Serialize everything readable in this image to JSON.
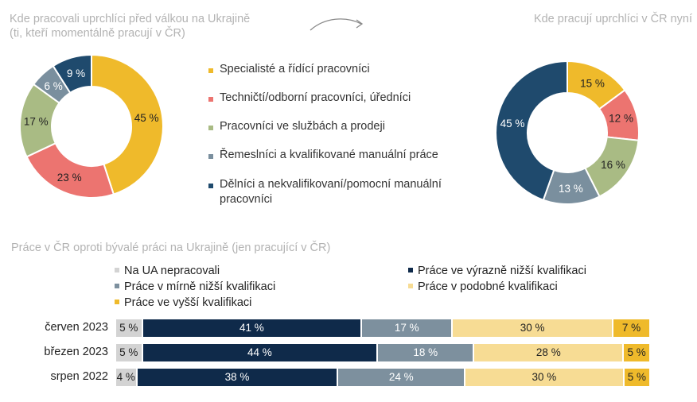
{
  "titles": {
    "left": "Kde pracovali uprchlíci před válkou na Ukrajině (ti, kteří momentálně pracují v ČR)",
    "right": "Kde pracují uprchlíci v ČR nyní",
    "bars": "Práce v ČR oproti bývalé práci na Ukrajině (jen pracující v ČR)"
  },
  "colors": {
    "specialists": "#efba2b",
    "technicians": "#ec7470",
    "services": "#a9bb84",
    "crafts": "#7a8f9e",
    "laborers": "#1f4a6d",
    "na_ua": "#d3d3d3",
    "much_lower": "#0f2a4a",
    "slightly_lower": "#7d909e",
    "similar": "#f7dc94",
    "higher": "#efba2b"
  },
  "icons": {
    "arrow": "curved-arrow-icon"
  },
  "chart_data": [
    {
      "type": "pie",
      "title": "Kde pracovali uprchlíci před válkou na Ukrajině (ti, kteří momentálně pracují v ČR)",
      "slices": [
        {
          "label": "Specialisté a řídící pracovníci",
          "value": 45,
          "display": "45 %",
          "color": "#efba2b"
        },
        {
          "label": "Techničtí/odborní pracovníci, úředníci",
          "value": 23,
          "display": "23 %",
          "color": "#ec7470"
        },
        {
          "label": "Pracovníci ve službách a prodeji",
          "value": 17,
          "display": "17 %",
          "color": "#a9bb84"
        },
        {
          "label": "Řemeslníci a kvalifikované manuální práce",
          "value": 6,
          "display": "6 %",
          "color": "#7a8f9e"
        },
        {
          "label": "Dělníci a nekvalifikovaní/pomocní manuální pracovníci",
          "value": 9,
          "display": "9 %",
          "color": "#1f4a6d"
        }
      ]
    },
    {
      "type": "pie",
      "title": "Kde pracují uprchlíci v ČR nyní",
      "slices": [
        {
          "label": "Specialisté a řídící pracovníci",
          "value": 15,
          "display": "15 %",
          "color": "#efba2b"
        },
        {
          "label": "Techničtí/odborní pracovníci, úředníci",
          "value": 12,
          "display": "12 %",
          "color": "#ec7470"
        },
        {
          "label": "Pracovníci ve službách a prodeji",
          "value": 16,
          "display": "16 %",
          "color": "#a9bb84"
        },
        {
          "label": "Řemeslníci a kvalifikované manuální práce",
          "value": 13,
          "display": "13 %",
          "color": "#7a8f9e"
        },
        {
          "label": "Dělníci a nekvalifikovaní/pomocní manuální pracovníci",
          "value": 45,
          "display": "45 %",
          "color": "#1f4a6d"
        }
      ]
    },
    {
      "type": "bar",
      "stacked": true,
      "orientation": "horizontal",
      "title": "Práce v ČR oproti bývalé práci na Ukrajině (jen pracující v ČR)",
      "categories": [
        "červen 2023",
        "březen 2023",
        "srpen 2022"
      ],
      "series": [
        {
          "name": "Na UA nepracovali",
          "color": "#d3d3d3",
          "values": [
            5,
            5,
            4
          ],
          "labels": [
            "5 %",
            "5 %",
            "4 %"
          ]
        },
        {
          "name": "Práce ve výrazně nižší kvalifikaci",
          "color": "#0f2a4a",
          "values": [
            41,
            44,
            38
          ],
          "labels": [
            "41 %",
            "44 %",
            "38 %"
          ]
        },
        {
          "name": "Práce v mírně nižší kvalifikaci",
          "color": "#7d909e",
          "values": [
            17,
            18,
            24
          ],
          "labels": [
            "17 %",
            "18 %",
            "24 %"
          ]
        },
        {
          "name": "Práce v podobné kvalifikaci",
          "color": "#f7dc94",
          "values": [
            30,
            28,
            30
          ],
          "labels": [
            "30 %",
            "28 %",
            "30 %"
          ]
        },
        {
          "name": "Práce ve vyšší kvalifikaci",
          "color": "#efba2b",
          "values": [
            7,
            5,
            5
          ],
          "labels": [
            "7 %",
            "5 %",
            "5 %"
          ]
        }
      ]
    }
  ]
}
